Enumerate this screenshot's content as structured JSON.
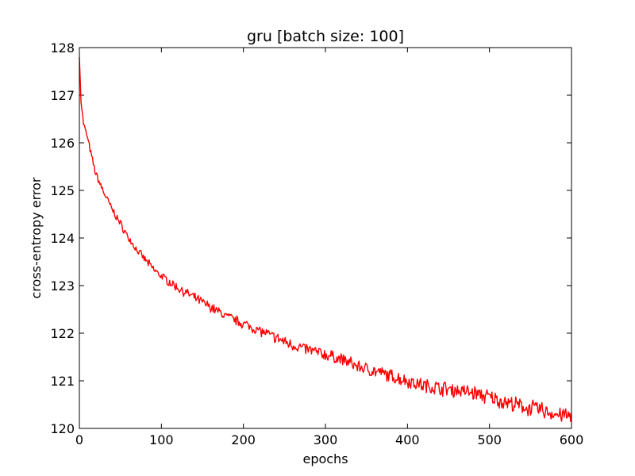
{
  "chart_data": {
    "type": "line",
    "title": "gru [batch size: 100]",
    "xlabel": "epochs",
    "ylabel": "cross-entropy error",
    "xlim": [
      0,
      600
    ],
    "ylim": [
      120,
      128
    ],
    "x_ticks": [
      "0",
      "100",
      "200",
      "300",
      "400",
      "500",
      "600"
    ],
    "y_ticks": [
      "120",
      "121",
      "122",
      "123",
      "124",
      "125",
      "126",
      "127",
      "128"
    ],
    "grid": false,
    "legend": "none",
    "series": [
      {
        "color": "#ff0000",
        "x": [
          0,
          2,
          5,
          10,
          15,
          20,
          30,
          40,
          50,
          60,
          70,
          80,
          90,
          100,
          120,
          140,
          160,
          180,
          200,
          220,
          240,
          260,
          280,
          300,
          320,
          340,
          360,
          380,
          400,
          420,
          440,
          460,
          480,
          500,
          520,
          540,
          560,
          580,
          600
        ],
        "values": [
          127.8,
          126.9,
          126.4,
          126.1,
          125.7,
          125.35,
          124.95,
          124.6,
          124.3,
          124.0,
          123.75,
          123.55,
          123.35,
          123.2,
          122.95,
          122.75,
          122.55,
          122.35,
          122.2,
          122.05,
          121.9,
          121.75,
          121.65,
          121.55,
          121.45,
          121.3,
          121.2,
          121.1,
          121.0,
          120.9,
          120.85,
          120.8,
          120.75,
          120.65,
          120.55,
          120.45,
          120.4,
          120.3,
          120.25
        ]
      }
    ]
  }
}
